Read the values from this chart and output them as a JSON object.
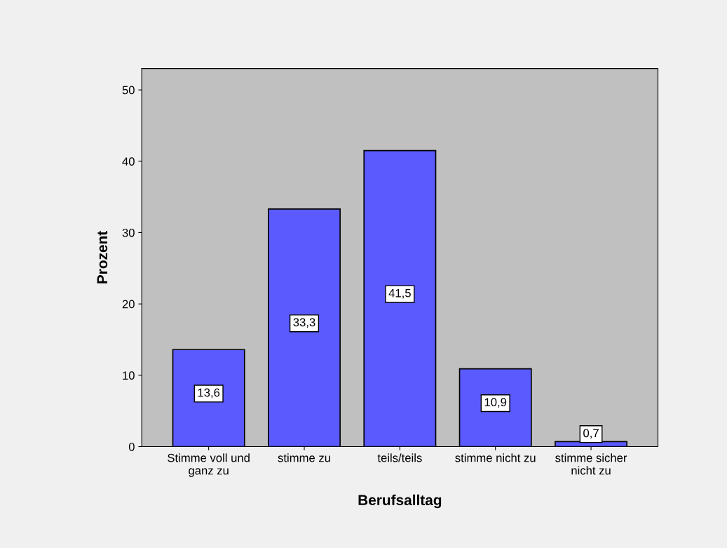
{
  "chart_data": {
    "type": "bar",
    "xlabel": "Berufsalltag",
    "ylabel": "Prozent",
    "categories": [
      "Stimme voll und\nganz zu",
      "stimme zu",
      "teils/teils",
      "stimme nicht zu",
      "stimme sicher\nnicht zu"
    ],
    "values": [
      13.6,
      33.3,
      41.5,
      10.9,
      0.7
    ],
    "value_labels": [
      "13,6",
      "33,3",
      "41,5",
      "10,9",
      "0,7"
    ],
    "color": "#5a5aff",
    "ylim": [
      0,
      53
    ],
    "yticks": [
      0,
      10,
      20,
      30,
      40,
      50
    ],
    "grid": false,
    "legend": false
  }
}
